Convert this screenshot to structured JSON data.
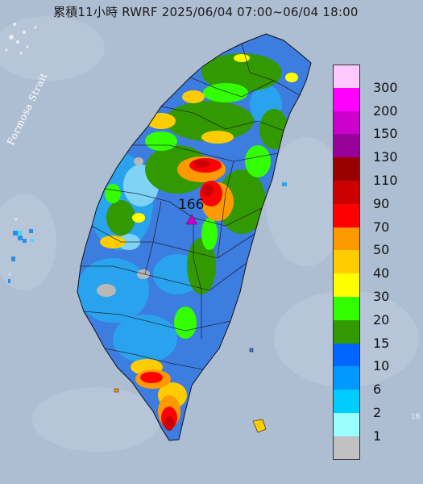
{
  "title": "累積11小時 RWRF 2025/06/04 07:00~06/04 18:00",
  "strait_label": "Formosa Strait",
  "max_value": "166",
  "edge_tick": "16",
  "legend": [
    {
      "label": "300",
      "color": "#ffc8ff"
    },
    {
      "label": "200",
      "color": "#ff00ff"
    },
    {
      "label": "150",
      "color": "#cc00cc"
    },
    {
      "label": "130",
      "color": "#990099"
    },
    {
      "label": "110",
      "color": "#990000"
    },
    {
      "label": "90",
      "color": "#cc0000"
    },
    {
      "label": "70",
      "color": "#ff0000"
    },
    {
      "label": "50",
      "color": "#ff9900"
    },
    {
      "label": "40",
      "color": "#ffcc00"
    },
    {
      "label": "30",
      "color": "#ffff00"
    },
    {
      "label": "20",
      "color": "#33ff00"
    },
    {
      "label": "15",
      "color": "#339900"
    },
    {
      "label": "10",
      "color": "#0066ff"
    },
    {
      "label": "6",
      "color": "#0099ff"
    },
    {
      "label": "2",
      "color": "#00ccff"
    },
    {
      "label": "1",
      "color": "#99ffff"
    },
    {
      "label": "",
      "color": "#c0c0c0"
    }
  ],
  "colors": {
    "sea": "#aebed2",
    "land_base": "#3d7de0",
    "land_low": "#2aa3ef",
    "marker": "#cc00cc"
  }
}
